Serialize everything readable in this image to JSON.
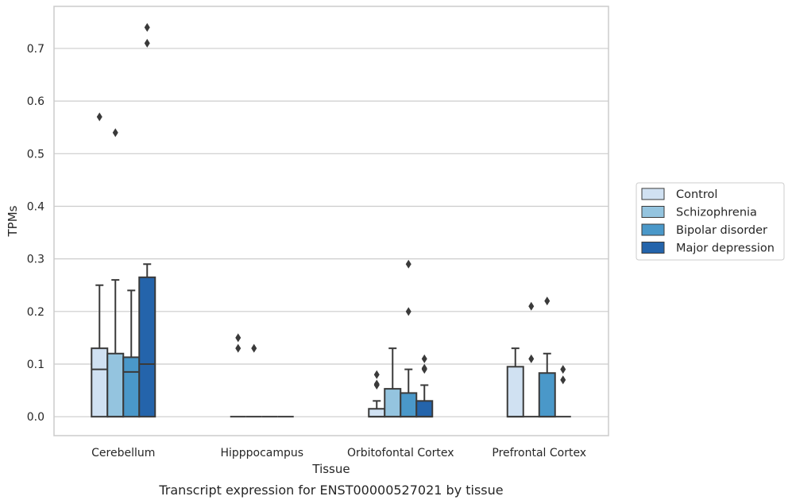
{
  "caption": "Transcript expression for ENST00000527021 by tissue",
  "chart_data": {
    "type": "box",
    "title": "",
    "xlabel": "Tissue",
    "ylabel": "TPMs",
    "ylim": [
      -0.036,
      0.78
    ],
    "yticks": [
      "0.0",
      "0.1",
      "0.2",
      "0.3",
      "0.4",
      "0.5",
      "0.6",
      "0.7"
    ],
    "grid": "horizontal",
    "legend_position": "right",
    "categories": [
      "Cerebellum",
      "Hipppocampus",
      "Orbitofontal Cortex",
      "Prefrontal Cortex"
    ],
    "series": [
      {
        "name": "Control",
        "color": "#d0e1f2",
        "boxes": [
          {
            "q1": 0.0,
            "median": 0.09,
            "q3": 0.13,
            "whisker_low": 0.0,
            "whisker_high": 0.25,
            "outliers": [
              0.57
            ]
          },
          {
            "q1": 0.0,
            "median": 0.0,
            "q3": 0.0,
            "whisker_low": 0.0,
            "whisker_high": 0.0,
            "outliers": [
              0.13,
              0.15
            ]
          },
          {
            "q1": 0.0,
            "median": 0.0,
            "q3": 0.015,
            "whisker_low": 0.0,
            "whisker_high": 0.03,
            "outliers": [
              0.06,
              0.062,
              0.08
            ]
          },
          {
            "q1": 0.0,
            "median": 0.0,
            "q3": 0.095,
            "whisker_low": 0.0,
            "whisker_high": 0.13,
            "outliers": []
          }
        ]
      },
      {
        "name": "Schizophrenia",
        "color": "#94c4df",
        "boxes": [
          {
            "q1": 0.0,
            "median": 0.0,
            "q3": 0.12,
            "whisker_low": 0.0,
            "whisker_high": 0.26,
            "outliers": [
              0.54
            ]
          },
          {
            "q1": 0.0,
            "median": 0.0,
            "q3": 0.0,
            "whisker_low": 0.0,
            "whisker_high": 0.0,
            "outliers": [
              0.13
            ]
          },
          {
            "q1": 0.0,
            "median": 0.0,
            "q3": 0.053,
            "whisker_low": 0.0,
            "whisker_high": 0.13,
            "outliers": []
          },
          {
            "q1": 0.0,
            "median": 0.0,
            "q3": 0.0,
            "whisker_low": 0.0,
            "whisker_high": 0.0,
            "outliers": [
              0.11,
              0.21
            ]
          }
        ]
      },
      {
        "name": "Bipolar disorder",
        "color": "#4a98c9",
        "boxes": [
          {
            "q1": 0.0,
            "median": 0.085,
            "q3": 0.113,
            "whisker_low": 0.0,
            "whisker_high": 0.24,
            "outliers": []
          },
          {
            "q1": 0.0,
            "median": 0.0,
            "q3": 0.0,
            "whisker_low": 0.0,
            "whisker_high": 0.0,
            "outliers": []
          },
          {
            "q1": 0.0,
            "median": 0.0,
            "q3": 0.045,
            "whisker_low": 0.0,
            "whisker_high": 0.09,
            "outliers": [
              0.2,
              0.29
            ]
          },
          {
            "q1": 0.0,
            "median": 0.0,
            "q3": 0.083,
            "whisker_low": 0.0,
            "whisker_high": 0.12,
            "outliers": [
              0.22
            ]
          }
        ]
      },
      {
        "name": "Major depression",
        "color": "#2464ab",
        "boxes": [
          {
            "q1": 0.0,
            "median": 0.1,
            "q3": 0.265,
            "whisker_low": 0.0,
            "whisker_high": 0.29,
            "outliers": [
              0.71,
              0.74
            ]
          },
          {
            "q1": 0.0,
            "median": 0.0,
            "q3": 0.0,
            "whisker_low": 0.0,
            "whisker_high": 0.0,
            "outliers": []
          },
          {
            "q1": 0.0,
            "median": 0.0,
            "q3": 0.03,
            "whisker_low": 0.0,
            "whisker_high": 0.06,
            "outliers": [
              0.09,
              0.092,
              0.11
            ]
          },
          {
            "q1": 0.0,
            "median": 0.0,
            "q3": 0.0,
            "whisker_low": 0.0,
            "whisker_high": 0.0,
            "outliers": [
              0.07,
              0.09
            ]
          }
        ]
      }
    ]
  }
}
